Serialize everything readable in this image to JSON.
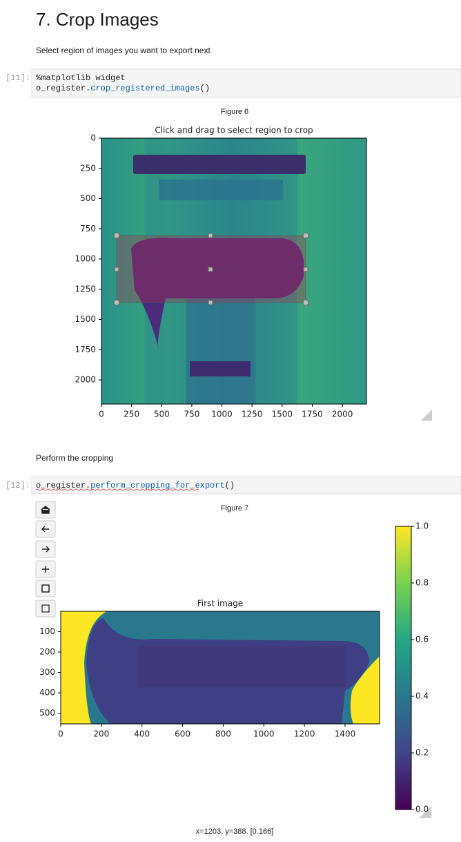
{
  "heading": "7. Crop Images",
  "markdown": [
    "Select region of images you want to export next",
    "Perform the cropping"
  ],
  "cells": [
    {
      "prompt": "[11]:",
      "code": [
        [
          {
            "text": "%matplotlib widget",
            "color": "#1f1f1f"
          }
        ],
        [
          {
            "text": "o_register.",
            "color": "#1f1f1f"
          },
          {
            "text": "crop_registered_images",
            "color": "#0b5fa5"
          },
          {
            "text": "()",
            "color": "#1f1f1f"
          }
        ]
      ]
    },
    {
      "prompt": "[12]:",
      "code": [
        [
          {
            "text": "o_register.",
            "color": "#1f1f1f"
          },
          {
            "text": "perform_cropping_for_export",
            "color": "#0b5fa5"
          },
          {
            "text": "()",
            "color": "#1f1f1f"
          }
        ]
      ]
    }
  ],
  "figures": [
    {
      "label": "Figure 6",
      "title": "Click and drag to select region to crop",
      "xlim": [
        0,
        2200
      ],
      "ylim": [
        2200,
        0
      ],
      "xticks": [
        0,
        250,
        500,
        750,
        1000,
        1250,
        1500,
        1750,
        2000
      ],
      "yticks": [
        0,
        250,
        500,
        750,
        1000,
        1250,
        1500,
        1750,
        2000
      ]
    },
    {
      "label": "Figure 7",
      "title": "First image",
      "xlim": [
        0,
        1570
      ],
      "ylim": [
        552,
        0
      ],
      "xticks": [
        0,
        200,
        400,
        600,
        800,
        1000,
        1200,
        1400
      ],
      "yticks": [
        100,
        200,
        300,
        400,
        500
      ],
      "colorbar": {
        "ylim": [
          0,
          1
        ],
        "yticks": [
          {
            "value": 0,
            "label": "0.0"
          },
          0.2,
          0.4,
          0.6,
          0.8,
          {
            "value": 1,
            "label": "1.0"
          }
        ]
      },
      "status": "x=1203. y=388. [0.166]"
    }
  ]
}
